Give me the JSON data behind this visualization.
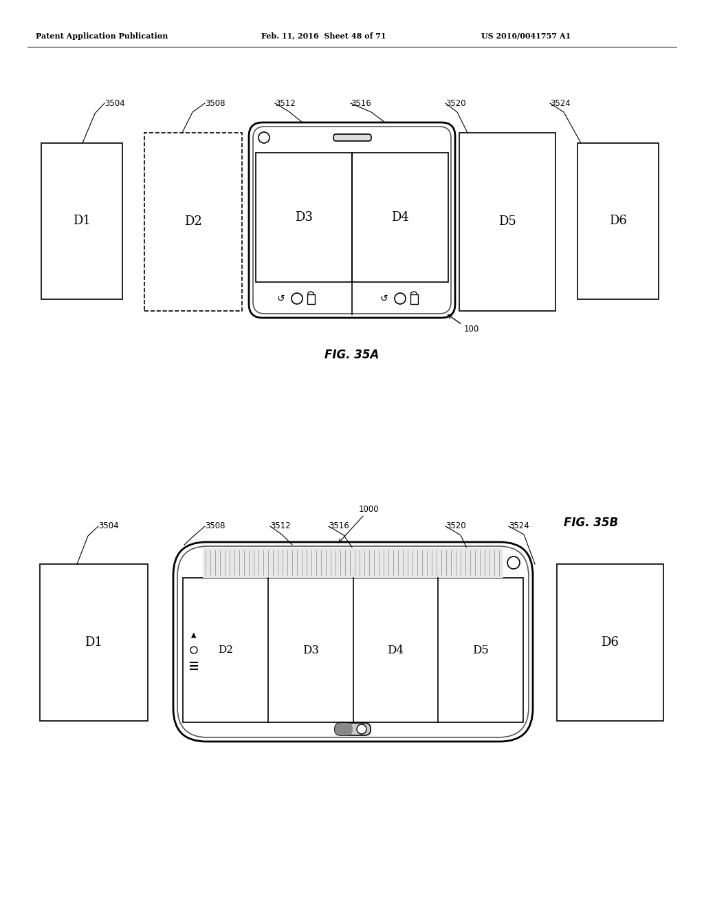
{
  "header_text": "Patent Application Publication",
  "header_date": "Feb. 11, 2016  Sheet 48 of 71",
  "header_patent": "US 2016/0041757 A1",
  "fig_a_label": "FIG. 35A",
  "fig_b_label": "FIG. 35B",
  "background_color": "#ffffff",
  "line_color": "#000000",
  "label_100": "100",
  "label_1000": "1000",
  "labels_a": [
    "3504",
    "3508",
    "3512",
    "3516",
    "3520",
    "3524"
  ],
  "labels_b": [
    "3504",
    "3508",
    "3512",
    "3516",
    "3520",
    "3524"
  ],
  "display_labels": [
    "D1",
    "D2",
    "D3",
    "D4",
    "D5",
    "D6"
  ]
}
